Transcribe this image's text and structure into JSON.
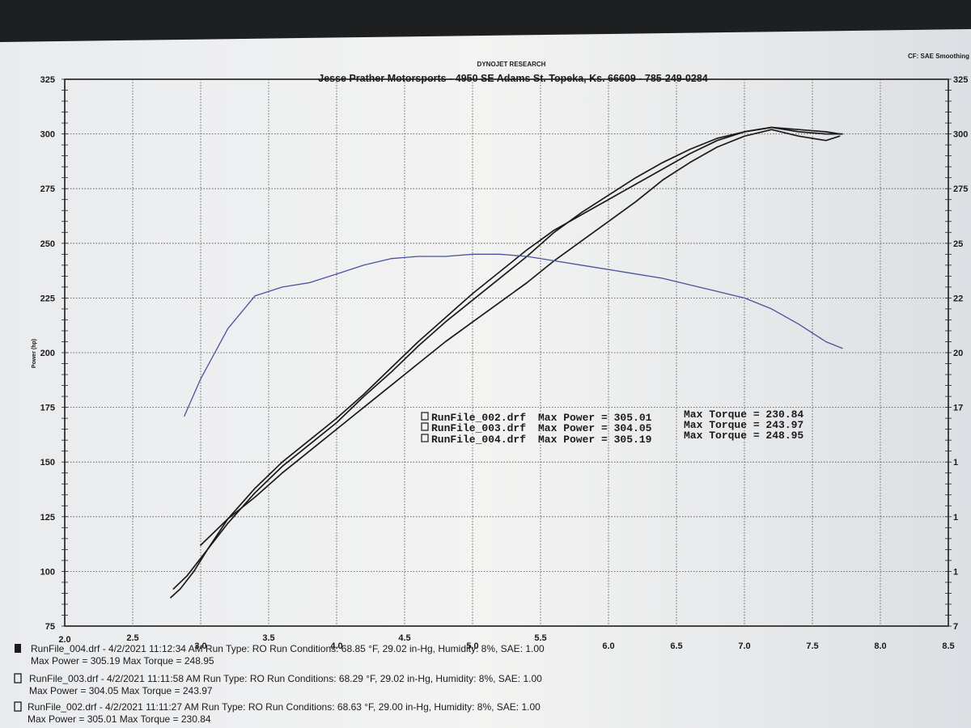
{
  "header": {
    "company": "DYNOJET RESEARCH",
    "shop_line": "Jesse Prather Motorsports - 4950 SE Adams St.   Topeka, Ks.  66609 - 785-249-0284",
    "corner_note": "CF: SAE  Smoothing"
  },
  "chart_data": {
    "type": "line",
    "ylabel": "Power (hp)",
    "xlim": [
      2.0,
      8.5
    ],
    "ylim": [
      75,
      325
    ],
    "x_ticks": [
      "2.0",
      "2.5",
      "3.0",
      "3.5",
      "4.0",
      "4.5",
      "5.0",
      "5.5",
      "6.0",
      "6.5",
      "7.0",
      "7.5",
      "8.0",
      "8.5"
    ],
    "y_ticks": [
      "75",
      "100",
      "125",
      "150",
      "175",
      "200",
      "225",
      "250",
      "275",
      "300",
      "325"
    ],
    "right_y_ticks": [
      "7",
      "1",
      "1",
      "1",
      "17",
      "20",
      "22",
      "25",
      "275",
      "300",
      "325"
    ],
    "grid": true,
    "series": [
      {
        "name": "RunFile_004.drf",
        "kind": "power",
        "color": "#1a1a1a",
        "x": [
          2.78,
          2.85,
          2.95,
          3.05,
          3.2,
          3.4,
          3.6,
          3.8,
          4.0,
          4.2,
          4.4,
          4.6,
          4.8,
          5.0,
          5.2,
          5.4,
          5.6,
          5.8,
          6.0,
          6.2,
          6.4,
          6.6,
          6.8,
          7.0,
          7.2,
          7.4,
          7.6,
          7.72
        ],
        "y": [
          88,
          92,
          100,
          110,
          124,
          138,
          150,
          160,
          170,
          181,
          193,
          205,
          216,
          227,
          237,
          247,
          256,
          263,
          270,
          277,
          284,
          291,
          297,
          301,
          303,
          301,
          300,
          300
        ]
      },
      {
        "name": "RunFile_003.drf",
        "kind": "power",
        "color": "#1a1a1a",
        "x": [
          2.8,
          2.9,
          3.0,
          3.2,
          3.4,
          3.6,
          3.8,
          4.0,
          4.2,
          4.4,
          4.6,
          4.8,
          5.0,
          5.2,
          5.4,
          5.6,
          5.8,
          6.0,
          6.2,
          6.4,
          6.6,
          6.8,
          7.0,
          7.2,
          7.4,
          7.6,
          7.7
        ],
        "y": [
          92,
          98,
          106,
          122,
          136,
          148,
          158,
          168,
          180,
          191,
          203,
          214,
          224,
          234,
          244,
          255,
          264,
          272,
          280,
          287,
          293,
          298,
          301,
          303,
          302,
          301,
          300
        ]
      },
      {
        "name": "RunFile_002.drf",
        "kind": "power",
        "color": "#1a1a1a",
        "x": [
          3.0,
          3.2,
          3.4,
          3.6,
          3.8,
          4.0,
          4.2,
          4.4,
          4.6,
          4.8,
          5.0,
          5.2,
          5.4,
          5.6,
          5.8,
          6.0,
          6.2,
          6.4,
          6.6,
          6.8,
          7.0,
          7.2,
          7.4,
          7.6,
          7.7
        ],
        "y": [
          112,
          124,
          134,
          145,
          155,
          165,
          175,
          185,
          195,
          205,
          214,
          223,
          232,
          242,
          251,
          260,
          269,
          279,
          287,
          294,
          299,
          302,
          299,
          297,
          299
        ]
      },
      {
        "name": "RunFile_004.drf",
        "kind": "torque",
        "color": "#4a52a0",
        "x": [
          2.88,
          3.0,
          3.2,
          3.4,
          3.6,
          3.8,
          4.0,
          4.2,
          4.4,
          4.6,
          4.8,
          5.0,
          5.2,
          5.4,
          5.6,
          5.8,
          6.0,
          6.2,
          6.4,
          6.6,
          6.8,
          7.0,
          7.2,
          7.4,
          7.6,
          7.72
        ],
        "y": [
          171,
          188,
          211,
          226,
          230,
          232,
          236,
          240,
          243,
          244,
          244,
          245,
          245,
          244,
          242,
          240,
          238,
          236,
          234,
          231,
          228,
          225,
          220,
          213,
          205,
          202
        ]
      }
    ],
    "legend": [
      {
        "file": "RunFile_002.drf",
        "power_text": "Max Power = 305.01",
        "torque_text": "Max Torque = 230.84"
      },
      {
        "file": "RunFile_003.drf",
        "power_text": "Max Power = 304.05",
        "torque_text": "Max Torque = 243.97"
      },
      {
        "file": "RunFile_004.drf",
        "power_text": "Max Power = 305.19",
        "torque_text": "Max Torque = 248.95"
      }
    ]
  },
  "footer": {
    "runs": [
      {
        "line1": "RunFile_004.drf - 4/2/2021 11:12:34 AM  Run Type: RO  Run Conditions: 68.85 °F, 29.02 in-Hg,  Humidity: 8%,  SAE: 1.00",
        "line2": "Max Power = 305.19  Max Torque = 248.95"
      },
      {
        "line1": "RunFile_003.drf - 4/2/2021 11:11:58 AM  Run Type: RO  Run Conditions: 68.29 °F, 29.02 in-Hg,  Humidity:  8%,  SAE: 1.00",
        "line2": "Max Power = 304.05  Max Torque = 243.97"
      },
      {
        "line1": "RunFile_002.drf - 4/2/2021 11:11:27 AM  Run Type: RO  Run Conditions: 68.63 °F, 29.00 in-Hg,  Humidity:  8%,  SAE: 1.00",
        "line2": "Max Power = 305.01  Max Torque = 230.84"
      }
    ]
  }
}
